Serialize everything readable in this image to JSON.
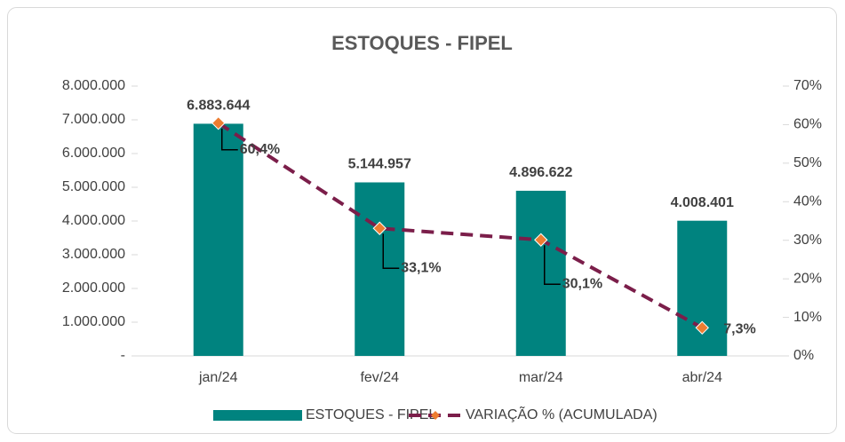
{
  "chart_data": {
    "type": "bar",
    "title": "ESTOQUES - FIPEL",
    "categories": [
      "jan/24",
      "fev/24",
      "mar/24",
      "abr/24"
    ],
    "series": [
      {
        "name": "ESTOQUES - FIPEL",
        "type": "bar",
        "color": "#00837f",
        "values": [
          6883644,
          5144957,
          4896622,
          4008401
        ],
        "value_labels": [
          "6.883.644",
          "5.144.957",
          "4.896.622",
          "4.008.401"
        ]
      },
      {
        "name": "VARIAÇÃO % (ACUMULADA)",
        "type": "line",
        "axis": "y2",
        "color": "#7b1e4a",
        "marker_color": "#ed7d31",
        "values": [
          60.4,
          33.1,
          30.1,
          7.3
        ],
        "value_labels": [
          "60,4%",
          "33,1%",
          "30,1%",
          "7,3%"
        ]
      }
    ],
    "ylim": [
      0,
      8000000
    ],
    "yticks": [
      {
        "value": 0,
        "label": "-"
      },
      {
        "value": 1000000,
        "label": "1.000.000"
      },
      {
        "value": 2000000,
        "label": "2.000.000"
      },
      {
        "value": 3000000,
        "label": "3.000.000"
      },
      {
        "value": 4000000,
        "label": "4.000.000"
      },
      {
        "value": 5000000,
        "label": "5.000.000"
      },
      {
        "value": 6000000,
        "label": "6.000.000"
      },
      {
        "value": 7000000,
        "label": "7.000.000"
      },
      {
        "value": 8000000,
        "label": "8.000.000"
      }
    ],
    "y2lim": [
      0,
      70
    ],
    "y2ticks": [
      {
        "value": 0,
        "label": "0%"
      },
      {
        "value": 10,
        "label": "10%"
      },
      {
        "value": 20,
        "label": "20%"
      },
      {
        "value": 30,
        "label": "30%"
      },
      {
        "value": 40,
        "label": "40%"
      },
      {
        "value": 50,
        "label": "50%"
      },
      {
        "value": 60,
        "label": "60%"
      },
      {
        "value": 70,
        "label": "70%"
      }
    ],
    "legend": "bottom"
  }
}
